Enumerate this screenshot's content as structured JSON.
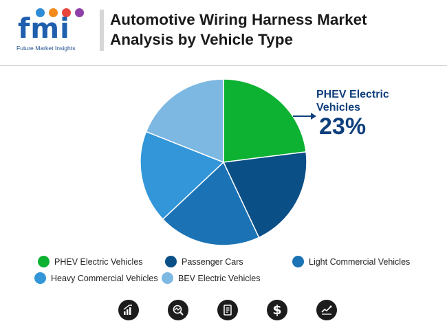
{
  "header": {
    "brand_letters": "fmi",
    "brand_tagline": "Future Market Insights",
    "title": "Automotive Wiring Harness Market Analysis by Vehicle Type"
  },
  "callout": {
    "label": "PHEV Electric Vehicles",
    "value": "23%"
  },
  "chart_data": {
    "type": "pie",
    "title": "Automotive Wiring Harness Market Analysis by Vehicle Type",
    "legend_position": "bottom",
    "categories": [
      "PHEV Electric Vehicles",
      "Passenger Cars",
      "Light Commercial Vehicles",
      "Heavy Commercial Vehicles",
      "BEV Electric Vehicles"
    ],
    "values": [
      23,
      20,
      20,
      18,
      19
    ],
    "colors": [
      "#0db233",
      "#0b4f87",
      "#1b73b5",
      "#3296d8",
      "#7db8e2"
    ]
  },
  "footer_icons": [
    "bar-growth-icon",
    "chart-magnifier-icon",
    "report-document-icon",
    "dollar-icon",
    "line-chart-icon"
  ]
}
